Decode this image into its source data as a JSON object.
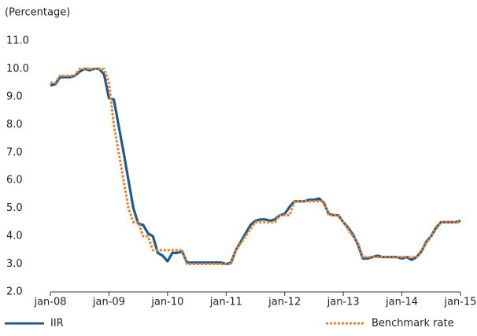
{
  "chart_data": {
    "type": "line",
    "y_label": "(Percentage)",
    "categories": [
      "jan-08",
      null,
      null,
      null,
      null,
      null,
      null,
      null,
      null,
      null,
      null,
      null,
      "jan-09",
      null,
      null,
      null,
      null,
      null,
      null,
      null,
      null,
      null,
      null,
      null,
      "jan-10",
      null,
      null,
      null,
      null,
      null,
      null,
      null,
      null,
      null,
      null,
      null,
      "jan-11",
      null,
      null,
      null,
      null,
      null,
      null,
      null,
      null,
      null,
      null,
      null,
      "jan-12",
      null,
      null,
      null,
      null,
      null,
      null,
      null,
      null,
      null,
      null,
      null,
      "jan-13",
      null,
      null,
      null,
      null,
      null,
      null,
      null,
      null,
      null,
      null,
      null,
      "jan-14",
      null,
      null,
      null,
      null,
      null,
      null,
      null,
      null,
      null,
      null,
      null,
      "jan-15"
    ],
    "series": [
      {
        "name": "IIR",
        "color": "#1f5a8a",
        "dash": false,
        "values": [
          9.4,
          9.45,
          9.7,
          9.7,
          9.7,
          9.75,
          9.9,
          10.0,
          9.95,
          10.0,
          10.0,
          9.8,
          8.95,
          8.9,
          7.95,
          7.0,
          6.0,
          5.0,
          4.45,
          4.4,
          4.1,
          4.0,
          3.4,
          3.3,
          3.1,
          3.4,
          3.4,
          3.45,
          3.05,
          3.05,
          3.05,
          3.05,
          3.05,
          3.05,
          3.05,
          3.05,
          3.0,
          3.05,
          3.5,
          3.8,
          4.1,
          4.4,
          4.55,
          4.6,
          4.6,
          4.55,
          4.6,
          4.75,
          4.8,
          5.05,
          5.25,
          5.25,
          5.25,
          5.3,
          5.3,
          5.35,
          5.2,
          4.8,
          4.75,
          4.75,
          4.5,
          4.3,
          4.05,
          3.7,
          3.2,
          3.2,
          3.25,
          3.3,
          3.25,
          3.25,
          3.25,
          3.25,
          3.2,
          3.25,
          3.15,
          3.25,
          3.45,
          3.8,
          4.0,
          4.3,
          4.5,
          4.5,
          4.5,
          4.5,
          4.55
        ]
      },
      {
        "name": "Benchmark rate",
        "color": "#e8802e",
        "dash": true,
        "values": [
          9.5,
          9.5,
          9.75,
          9.75,
          9.75,
          9.75,
          10.0,
          10.0,
          10.0,
          10.0,
          10.0,
          10.0,
          9.5,
          8.0,
          7.0,
          6.0,
          5.0,
          4.5,
          4.5,
          4.0,
          4.0,
          3.5,
          3.5,
          3.5,
          3.5,
          3.5,
          3.5,
          3.5,
          3.0,
          3.0,
          3.0,
          3.0,
          3.0,
          3.0,
          3.0,
          3.0,
          3.0,
          3.0,
          3.5,
          3.75,
          4.0,
          4.25,
          4.5,
          4.5,
          4.5,
          4.5,
          4.5,
          4.75,
          4.75,
          4.75,
          5.25,
          5.25,
          5.25,
          5.25,
          5.25,
          5.25,
          5.25,
          4.75,
          4.75,
          4.75,
          4.5,
          4.25,
          4.0,
          3.75,
          3.25,
          3.25,
          3.25,
          3.25,
          3.25,
          3.25,
          3.25,
          3.25,
          3.25,
          3.25,
          3.25,
          3.25,
          3.5,
          3.75,
          4.0,
          4.25,
          4.5,
          4.5,
          4.5,
          4.5,
          4.5
        ]
      }
    ],
    "ylim": [
      2.0,
      11.0
    ],
    "yticks": [
      {
        "value": 2,
        "label": "2.0"
      },
      {
        "value": 3,
        "label": "3.0"
      },
      {
        "value": 4,
        "label": "4.0"
      },
      {
        "value": 5,
        "label": "5.0"
      },
      {
        "value": 6,
        "label": "6.0"
      },
      {
        "value": 7,
        "label": "7.0"
      },
      {
        "value": 8,
        "label": "8.0"
      },
      {
        "value": 9,
        "label": "9.0"
      },
      {
        "value": 10,
        "label": "10.0"
      },
      {
        "value": 11,
        "label": "11.0"
      }
    ],
    "grid": false,
    "legend": "bottom"
  }
}
